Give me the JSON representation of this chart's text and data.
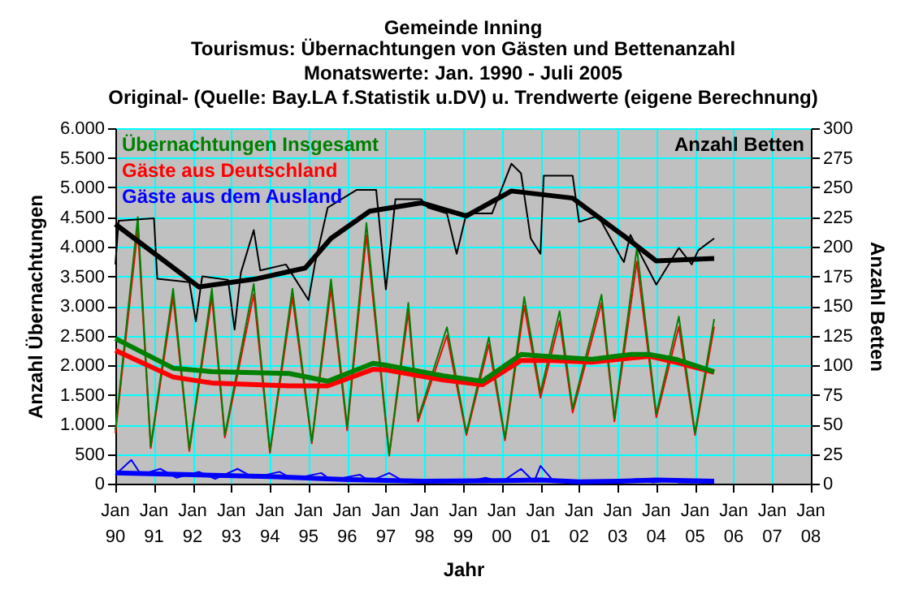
{
  "chart_data": {
    "type": "line",
    "title": "Gemeinde Inning",
    "subtitle": "Tourismus: Übernachtungen von Gästen und Bettenanzahl\nMonatswerte: Jan. 1990 - Juli 2005\nOriginal- (Quelle: Bay.LA f.Statistik u.DV) u. Trendwerte (eigene Berechnung)",
    "xlabel": "Jahr",
    "ylabel": "Anzahl Übernachtungen",
    "y2label": "Anzahl Betten",
    "xlim": [
      "1990-01",
      "2008-01"
    ],
    "xticks": [
      {
        "value": "1990-01",
        "label": "Jan 90"
      },
      {
        "value": "1991-01",
        "label": "Jan 91"
      },
      {
        "value": "1992-01",
        "label": "Jan 92"
      },
      {
        "value": "1993-01",
        "label": "Jan 93"
      },
      {
        "value": "1994-01",
        "label": "Jan 94"
      },
      {
        "value": "1995-01",
        "label": "Jan 95"
      },
      {
        "value": "1996-01",
        "label": "Jan 96"
      },
      {
        "value": "1997-01",
        "label": "Jan 97"
      },
      {
        "value": "1998-01",
        "label": "Jan 98"
      },
      {
        "value": "1999-01",
        "label": "Jan 99"
      },
      {
        "value": "2000-01",
        "label": "Jan 00"
      },
      {
        "value": "2001-01",
        "label": "Jan 01"
      },
      {
        "value": "2002-01",
        "label": "Jan 02"
      },
      {
        "value": "2003-01",
        "label": "Jan 03"
      },
      {
        "value": "2004-01",
        "label": "Jan 04"
      },
      {
        "value": "2005-01",
        "label": "Jan 05"
      },
      {
        "value": "2006-01",
        "label": "Jan 06"
      },
      {
        "value": "2007-01",
        "label": "Jan 07"
      },
      {
        "value": "2008-01",
        "label": "Jan 08"
      }
    ],
    "ylim": [
      0,
      6000
    ],
    "yticks": [
      0,
      {
        "value": 500,
        "label": "500"
      },
      {
        "value": 1000,
        "label": "1.000"
      },
      {
        "value": 1500,
        "label": "1.500"
      },
      {
        "value": 2000,
        "label": "2.000"
      },
      {
        "value": 2500,
        "label": "2.500"
      },
      {
        "value": 3000,
        "label": "3.000"
      },
      {
        "value": 3500,
        "label": "3.500"
      },
      {
        "value": 4000,
        "label": "4.000"
      },
      {
        "value": 4500,
        "label": "4.500"
      },
      {
        "value": 5000,
        "label": "5.000"
      },
      {
        "value": 5500,
        "label": "5.500"
      },
      {
        "value": 6000,
        "label": "6.000"
      }
    ],
    "y2lim": [
      0,
      300
    ],
    "y2ticks": [
      0,
      25,
      50,
      75,
      100,
      125,
      150,
      175,
      200,
      225,
      250,
      275,
      300
    ],
    "grid": true,
    "legend": "top left",
    "marker": "none",
    "series": [
      {
        "name": "Übernachtungen Insgesamt",
        "color": "#008000",
        "x": [
          "1990-01",
          "1990-08",
          "1990-12",
          "1991-07",
          "1991-12",
          "1992-07",
          "1992-11",
          "1993-08",
          "1994-01",
          "1994-08",
          "1995-02",
          "1995-08",
          "1996-01",
          "1996-07",
          "1997-02",
          "1997-08",
          "1997-11",
          "1998-08",
          "1999-02",
          "1999-09",
          "2000-02",
          "2000-08",
          "2001-01",
          "2001-07",
          "2001-11",
          "2002-08",
          "2002-12",
          "2003-07",
          "2004-01",
          "2004-08",
          "2005-01",
          "2005-07"
        ],
        "values": [
          900,
          4500,
          630,
          3290,
          580,
          3290,
          820,
          3370,
          550,
          3290,
          710,
          3450,
          960,
          4400,
          490,
          3050,
          1100,
          2640,
          860,
          2470,
          770,
          3150,
          1540,
          2910,
          1270,
          3190,
          1100,
          3970,
          1180,
          2820,
          860,
          2780
        ]
      },
      {
        "name": "Gäste aus Deutschland",
        "color": "#ff0000",
        "x": [
          "1990-01",
          "1990-08",
          "1990-12",
          "1991-07",
          "1991-12",
          "1992-07",
          "1992-11",
          "1993-08",
          "1994-01",
          "1994-08",
          "1995-02",
          "1995-08",
          "1996-01",
          "1996-07",
          "1997-02",
          "1997-08",
          "1997-11",
          "1998-08",
          "1999-02",
          "1999-09",
          "2000-02",
          "2000-08",
          "2001-01",
          "2001-07",
          "2001-11",
          "2002-08",
          "2002-12",
          "2003-07",
          "2004-01",
          "2004-08",
          "2005-01",
          "2005-07"
        ],
        "values": [
          850,
          4300,
          600,
          3150,
          550,
          3150,
          780,
          3200,
          520,
          3150,
          680,
          3300,
          900,
          4200,
          470,
          2900,
          1050,
          2500,
          820,
          2350,
          730,
          3000,
          1450,
          2750,
          1200,
          3050,
          1050,
          3750,
          1120,
          2650,
          820,
          2650
        ]
      },
      {
        "name": "Gäste aus dem Ausland",
        "color": "#0000ff",
        "x": [
          "1990-01",
          "1990-06",
          "1990-09",
          "1991-03",
          "1991-08",
          "1992-03",
          "1992-08",
          "1993-03",
          "1993-08",
          "1994-04",
          "1994-08",
          "1995-05",
          "1995-08",
          "1996-05",
          "1996-08",
          "1997-02",
          "1997-07",
          "1998-01",
          "1998-08",
          "1999-01",
          "1999-08",
          "2000-01",
          "2000-07",
          "2000-11",
          "2001-01",
          "2001-05",
          "2002-01",
          "2003-01",
          "2003-07",
          "2003-12",
          "2004-05",
          "2004-08",
          "2005-07"
        ],
        "values": [
          150,
          400,
          150,
          250,
          100,
          200,
          80,
          250,
          100,
          200,
          80,
          180,
          60,
          150,
          40,
          180,
          30,
          20,
          60,
          20,
          100,
          30,
          250,
          30,
          300,
          50,
          20,
          20,
          80,
          20,
          60,
          20,
          20
        ]
      },
      {
        "name": "Anzahl Betten",
        "color": "#000000",
        "axis": "y2",
        "x": [
          "1990-01",
          "1990-02",
          "1991-01",
          "1991-02",
          "1991-12",
          "1992-02",
          "1992-04",
          "1992-12",
          "1993-02",
          "1993-04",
          "1993-08",
          "1993-10",
          "1994-06",
          "1995-01",
          "1995-03",
          "1995-07",
          "1996-04",
          "1996-10",
          "1997-01",
          "1997-04",
          "1997-12",
          "1998-02",
          "1998-08",
          "1998-11",
          "1999-02",
          "1999-10",
          "2000-04",
          "2000-07",
          "2000-10",
          "2001-01",
          "2001-02",
          "2001-11",
          "2002-01",
          "2002-07",
          "2003-02",
          "2003-03",
          "2003-05",
          "2004-01",
          "2004-08",
          "2004-12",
          "2005-02",
          "2005-07"
        ],
        "values": [
          185,
          222,
          224,
          173,
          170,
          137,
          175,
          172,
          130,
          178,
          214,
          180,
          185,
          155,
          185,
          233,
          248,
          248,
          164,
          240,
          240,
          233,
          228,
          194,
          228,
          228,
          270,
          262,
          207,
          194,
          260,
          260,
          221,
          226,
          191,
          187,
          210,
          168,
          199,
          185,
          197,
          207
        ]
      },
      {
        "color": "#ff0000",
        "x": [
          "1990-01",
          "1991-07",
          "1992-07",
          "1994-07",
          "1995-07",
          "1996-09",
          "1997-01",
          "1998-07",
          "1999-07",
          "2000-07",
          "2001-05",
          "2002-05",
          "2003-05",
          "2003-11",
          "2004-07",
          "2005-07"
        ],
        "values": [
          2250,
          1800,
          1700,
          1650,
          1650,
          1930,
          1920,
          1750,
          1670,
          2080,
          2080,
          2050,
          2120,
          2150,
          2050,
          1880
        ]
      },
      {
        "color": "#008000",
        "x": [
          "1990-01",
          "1991-07",
          "1992-07",
          "1994-07",
          "1995-07",
          "1996-09",
          "1997-01",
          "1998-07",
          "1999-07",
          "2000-07",
          "2001-05",
          "2002-05",
          "2003-05",
          "2003-11",
          "2004-07",
          "2005-07"
        ],
        "values": [
          2450,
          1950,
          1890,
          1860,
          1730,
          2030,
          2000,
          1820,
          1730,
          2180,
          2140,
          2100,
          2180,
          2180,
          2100,
          1890
        ]
      },
      {
        "color": "#0000ff",
        "x": [
          "1990-01",
          "1992-01",
          "1994-01",
          "1996-01",
          "1998-01",
          "2000-01",
          "2001-01",
          "2002-01",
          "2003-01",
          "2004-01",
          "2005-07"
        ],
        "values": [
          180,
          150,
          120,
          70,
          40,
          50,
          60,
          30,
          40,
          60,
          40
        ]
      },
      {
        "color": "#000000",
        "axis": "y2",
        "x": [
          "1990-01",
          "1992-03",
          "1993-09",
          "1994-12",
          "1995-08",
          "1996-08",
          "1997-12",
          "1999-02",
          "2000-04",
          "2001-11",
          "2003-04",
          "2004-01",
          "2005-07"
        ],
        "values": [
          219,
          166,
          173,
          182,
          207,
          230,
          237,
          226,
          247,
          241,
          207,
          188,
          190
        ]
      }
    ]
  }
}
